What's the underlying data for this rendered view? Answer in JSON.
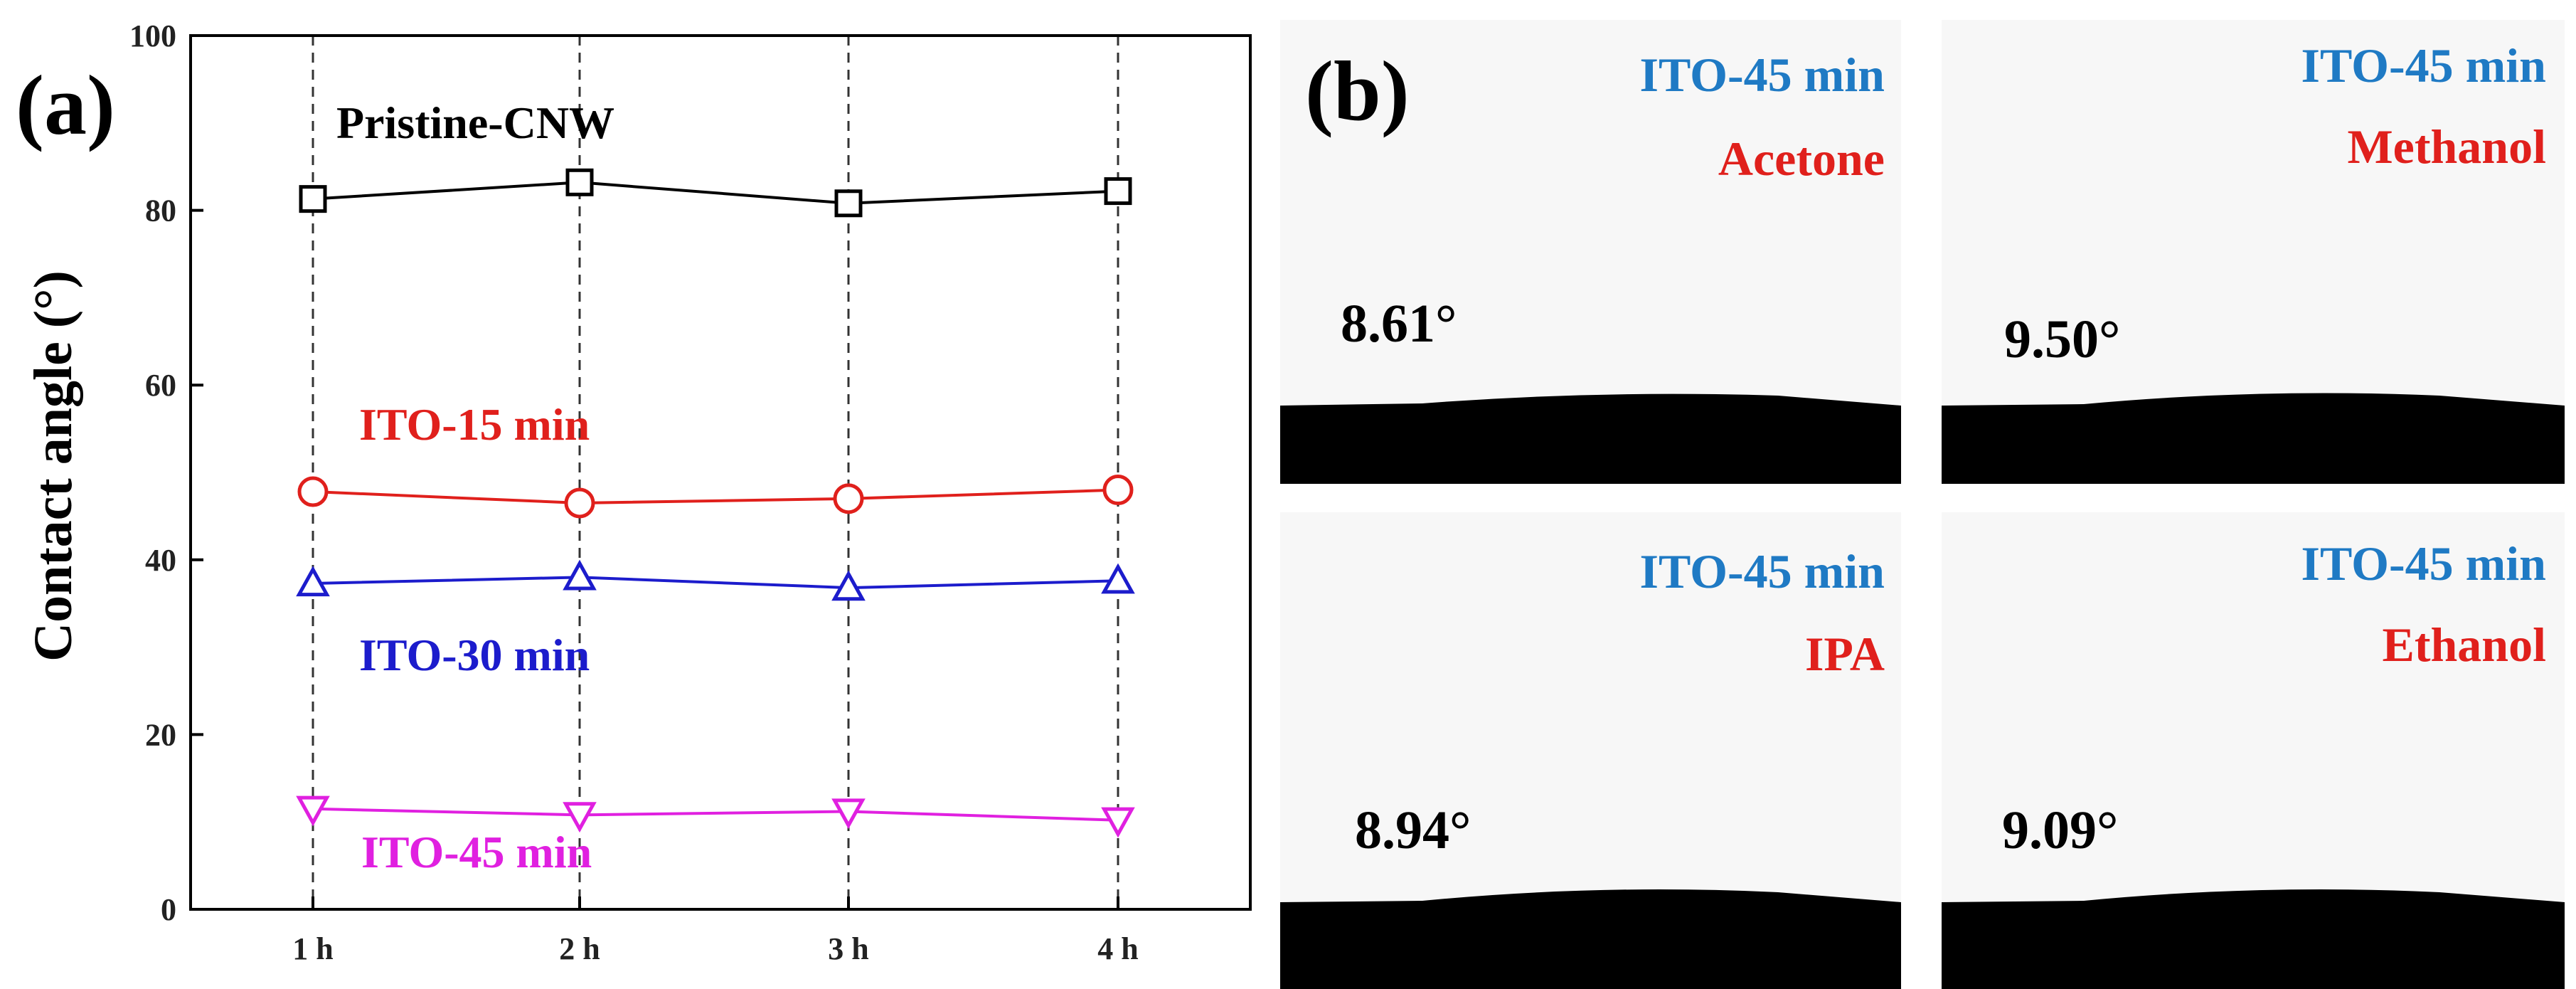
{
  "panel_a": {
    "label": "(a)",
    "chart_data": {
      "type": "line",
      "title": "",
      "xlabel": "",
      "ylabel": "Contact angle (°)",
      "categories": [
        "1 h",
        "2 h",
        "3 h",
        "4 h"
      ],
      "ylim": [
        0,
        100
      ],
      "yticks": [
        0,
        20,
        40,
        60,
        80,
        100
      ],
      "grid": "vertical dashed lines at each category",
      "series": [
        {
          "name": "Pristine-CNW",
          "marker": "square",
          "color": "#000000",
          "values": [
            81.3,
            83.2,
            80.8,
            82.2
          ]
        },
        {
          "name": "ITO-15 min",
          "marker": "circle",
          "color": "#e0201c",
          "values": [
            47.8,
            46.5,
            47.0,
            48.0
          ]
        },
        {
          "name": "ITO-30 min",
          "marker": "triangle-up",
          "color": "#1c1ccc",
          "values": [
            37.3,
            38.0,
            36.8,
            37.6
          ]
        },
        {
          "name": "ITO-45 min",
          "marker": "triangle-down",
          "color": "#e020e0",
          "values": [
            11.5,
            10.8,
            11.2,
            10.2
          ]
        }
      ]
    }
  },
  "panel_b": {
    "label": "(b)",
    "title_color": "#1f7ac4",
    "solvent_color": "#e0201c",
    "photos": [
      {
        "title": "ITO-45 min",
        "solvent": "Acetone",
        "angle": "8.61°"
      },
      {
        "title": "ITO-45 min",
        "solvent": "Methanol",
        "angle": "9.50°"
      },
      {
        "title": "ITO-45 min",
        "solvent": "IPA",
        "angle": "8.94°"
      },
      {
        "title": "ITO-45 min",
        "solvent": "Ethanol",
        "angle": "9.09°"
      }
    ]
  }
}
